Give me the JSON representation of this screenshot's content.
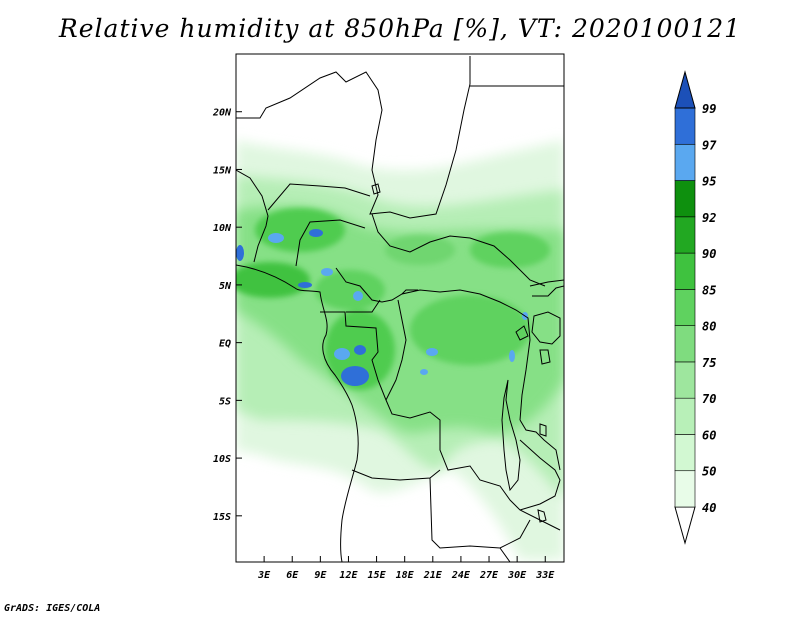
{
  "title": "Relative humidity at 850hPa [%], VT: 2020100121",
  "credit": "GrADS: IGES/COLA",
  "map": {
    "lat_range": [
      -19,
      25
    ],
    "lon_range": [
      0,
      35
    ],
    "lat_labels": [
      "20N",
      "15N",
      "10N",
      "5N",
      "EQ",
      "5S",
      "10S",
      "15S"
    ],
    "lat_values": [
      20,
      15,
      10,
      5,
      0,
      -5,
      -10,
      -15
    ],
    "lon_labels": [
      "3E",
      "6E",
      "9E",
      "12E",
      "15E",
      "18E",
      "21E",
      "24E",
      "27E",
      "30E",
      "33E"
    ],
    "lon_values": [
      3,
      6,
      9,
      12,
      15,
      18,
      21,
      24,
      27,
      30,
      33
    ]
  },
  "colorbar": {
    "levels": [
      "40",
      "50",
      "60",
      "70",
      "75",
      "80",
      "85",
      "90",
      "92",
      "95",
      "97",
      "99"
    ],
    "colors": [
      "#ffffff",
      "#e8fce8",
      "#d2f8d2",
      "#b8f0b8",
      "#9ee69e",
      "#7fdc7f",
      "#5fd25f",
      "#3fc23f",
      "#22a822",
      "#0e900e",
      "#5aa8f0",
      "#2f6fd8",
      "#1c50b8"
    ]
  }
}
